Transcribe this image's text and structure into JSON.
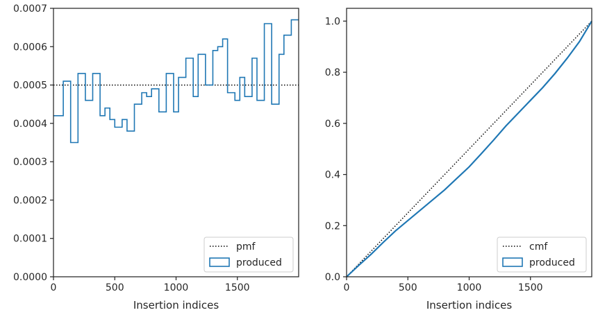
{
  "chart_data": [
    {
      "type": "line",
      "xlabel": "Insertion indices",
      "ylabel": "",
      "xlim": [
        0,
        2000
      ],
      "ylim": [
        0,
        0.0007
      ],
      "xticks": [
        0,
        500,
        1000,
        1500
      ],
      "xtick_labels": [
        "0",
        "500",
        "1000",
        "1500"
      ],
      "yticks": [
        0,
        0.0001,
        0.0002,
        0.0003,
        0.0004,
        0.0005,
        0.0006,
        0.0007
      ],
      "ytick_labels": [
        "0.0000",
        "0.0001",
        "0.0002",
        "0.0003",
        "0.0004",
        "0.0005",
        "0.0006",
        "0.0007"
      ],
      "grid": false,
      "legend_position": "lower-right",
      "series": [
        {
          "name": "pmf",
          "style": "dotted",
          "color": "#000000",
          "x": [
            0,
            2000
          ],
          "values": [
            0.0005,
            0.0005
          ]
        },
        {
          "name": "produced",
          "style": "step",
          "color": "#1f77b4",
          "bin_edges": [
            0,
            80,
            140,
            200,
            260,
            320,
            380,
            420,
            460,
            500,
            560,
            600,
            660,
            720,
            760,
            800,
            860,
            920,
            980,
            1020,
            1080,
            1140,
            1180,
            1240,
            1300,
            1340,
            1380,
            1420,
            1480,
            1520,
            1560,
            1620,
            1660,
            1720,
            1780,
            1840,
            1880,
            1940,
            2000
          ],
          "values": [
            0.00042,
            0.00051,
            0.00035,
            0.00053,
            0.00046,
            0.00053,
            0.00042,
            0.00044,
            0.00041,
            0.00039,
            0.00041,
            0.00038,
            0.00045,
            0.00048,
            0.00047,
            0.00049,
            0.00043,
            0.00053,
            0.00043,
            0.00052,
            0.00057,
            0.00047,
            0.00058,
            0.0005,
            0.00059,
            0.0006,
            0.00062,
            0.00048,
            0.00046,
            0.00052,
            0.00047,
            0.00057,
            0.00046,
            0.00066,
            0.00045,
            0.00058,
            0.00063,
            0.00067
          ]
        }
      ]
    },
    {
      "type": "line",
      "xlabel": "Insertion indices",
      "ylabel": "",
      "xlim": [
        0,
        2000
      ],
      "ylim": [
        0,
        1.05
      ],
      "xticks": [
        0,
        500,
        1000,
        1500
      ],
      "xtick_labels": [
        "0",
        "500",
        "1000",
        "1500"
      ],
      "yticks": [
        0,
        0.2,
        0.4,
        0.6,
        0.8,
        1.0
      ],
      "ytick_labels": [
        "0.0",
        "0.2",
        "0.4",
        "0.6",
        "0.8",
        "1.0"
      ],
      "grid": false,
      "legend_position": "lower-right",
      "series": [
        {
          "name": "cmf",
          "style": "dotted",
          "color": "#000000",
          "x": [
            0,
            2000
          ],
          "values": [
            0,
            1.0
          ]
        },
        {
          "name": "produced",
          "style": "solid",
          "color": "#1f77b4",
          "x": [
            0,
            100,
            200,
            300,
            400,
            500,
            600,
            700,
            800,
            900,
            1000,
            1100,
            1200,
            1300,
            1400,
            1500,
            1600,
            1700,
            1800,
            1900,
            2000
          ],
          "values": [
            0,
            0.045,
            0.088,
            0.135,
            0.18,
            0.22,
            0.26,
            0.3,
            0.34,
            0.385,
            0.43,
            0.482,
            0.535,
            0.59,
            0.64,
            0.69,
            0.74,
            0.795,
            0.855,
            0.92,
            1.0
          ]
        }
      ]
    }
  ]
}
